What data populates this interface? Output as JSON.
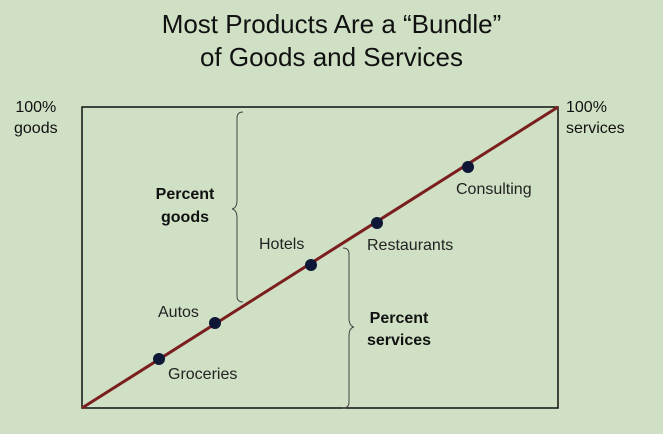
{
  "title": {
    "line1": "Most Products Are a “Bundle”",
    "line2": "of Goods and Services"
  },
  "axis_corners": {
    "left_line1": "100%",
    "left_line2": "goods",
    "right_line1": "100%",
    "right_line2": "services"
  },
  "products": [
    {
      "name": "Groceries"
    },
    {
      "name": "Autos"
    },
    {
      "name": "Hotels"
    },
    {
      "name": "Restaurants"
    },
    {
      "name": "Consulting"
    }
  ],
  "brackets": {
    "goods_line1": "Percent",
    "goods_line2": "goods",
    "services_line1": "Percent",
    "services_line2": "services"
  },
  "colors": {
    "background": "#cfe0c4",
    "diagonal_line": "#7a1e1e",
    "points": "#0f1736",
    "frame": "#111111"
  }
}
